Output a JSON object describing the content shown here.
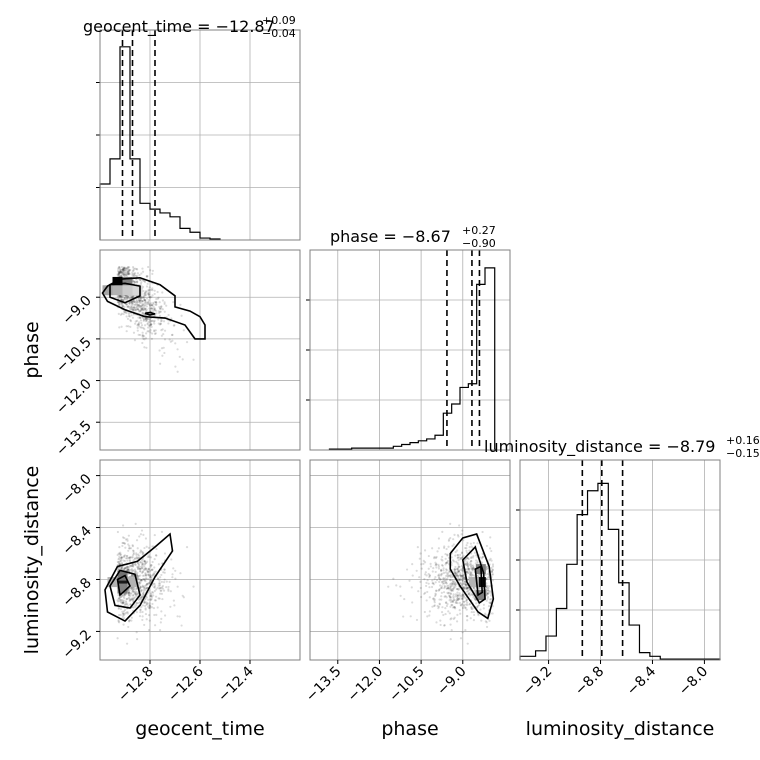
{
  "chart_data": {
    "type": "corner",
    "parameters": [
      "geocent_time",
      "phase",
      "luminosity_distance"
    ],
    "titles": [
      {
        "text": "geocent_time = −12.87",
        "upper": "+0.09",
        "lower": "−0.04"
      },
      {
        "text": "phase = −8.67",
        "upper": "+0.27",
        "lower": "−0.90"
      },
      {
        "text": "luminosity_distance = −8.79",
        "upper": "+0.16",
        "lower": "−0.15"
      }
    ],
    "axis_labels": {
      "x": [
        "geocent_time",
        "phase",
        "luminosity_distance"
      ],
      "y": [
        "phase",
        "luminosity_distance"
      ]
    },
    "ranges": {
      "geocent_time": [
        -13.0,
        -12.2
      ],
      "phase": [
        -14.5,
        -7.3
      ],
      "luminosity_distance": [
        -9.42,
        -7.88
      ]
    },
    "ticks": {
      "geocent_time": [
        {
          "v": -12.8,
          "label": "−12.8"
        },
        {
          "v": -12.6,
          "label": "−12.6"
        },
        {
          "v": -12.4,
          "label": "−12.4"
        }
      ],
      "phase": [
        {
          "v": -13.5,
          "label": "−13.5"
        },
        {
          "v": -12.0,
          "label": "−12.0"
        },
        {
          "v": -10.5,
          "label": "−10.5"
        },
        {
          "v": -9.0,
          "label": "−9.0"
        }
      ],
      "luminosity_distance": [
        {
          "v": -9.2,
          "label": "−9.2"
        },
        {
          "v": -8.8,
          "label": "−8.8"
        },
        {
          "v": -8.4,
          "label": "−8.4"
        },
        {
          "v": -8.0,
          "label": "−8.0"
        }
      ]
    },
    "quantiles": {
      "geocent_time": [
        -12.91,
        -12.87,
        -12.78
      ],
      "phase": [
        -9.57,
        -8.67,
        -8.4
      ],
      "luminosity_distance": [
        -8.94,
        -8.79,
        -8.63
      ]
    },
    "histograms": {
      "geocent_time": {
        "edges": [
          -13.0,
          -12.96,
          -12.92,
          -12.88,
          -12.84,
          -12.8,
          -12.76,
          -12.72,
          -12.68,
          -12.64,
          -12.6,
          -12.56,
          -12.52
        ],
        "counts": [
          0.29,
          0.42,
          1.0,
          0.42,
          0.19,
          0.16,
          0.14,
          0.12,
          0.06,
          0.04,
          0.01,
          0.005
        ]
      },
      "phase": {
        "edges": [
          -13.8,
          -13.0,
          -11.5,
          -11.2,
          -10.9,
          -10.6,
          -10.3,
          -10.0,
          -9.7,
          -9.4,
          -9.1,
          -8.8,
          -8.5,
          -8.2,
          -7.85
        ],
        "counts": [
          0.005,
          0.01,
          0.02,
          0.03,
          0.04,
          0.05,
          0.06,
          0.08,
          0.2,
          0.25,
          0.34,
          0.36,
          0.9,
          0.99
        ]
      },
      "luminosity_distance": {
        "edges": [
          -9.42,
          -9.3,
          -9.22,
          -9.14,
          -9.06,
          -8.98,
          -8.9,
          -8.82,
          -8.74,
          -8.66,
          -8.58,
          -8.5,
          -8.42,
          -8.34,
          -7.88
        ],
        "counts": [
          0.02,
          0.05,
          0.13,
          0.28,
          0.52,
          0.79,
          0.92,
          0.96,
          0.71,
          0.42,
          0.19,
          0.04,
          0.02,
          0.005
        ]
      }
    },
    "contours": {
      "phase_vs_geocent_time": [
        [
          [
            -12.97,
            -8.6
          ],
          [
            -12.92,
            -8.35
          ],
          [
            -12.84,
            -8.3
          ],
          [
            -12.76,
            -8.55
          ],
          [
            -12.7,
            -8.95
          ],
          [
            -12.7,
            -9.35
          ],
          [
            -12.64,
            -9.5
          ],
          [
            -12.6,
            -9.7
          ],
          [
            -12.58,
            -10.0
          ],
          [
            -12.58,
            -10.5
          ],
          [
            -12.62,
            -10.5
          ],
          [
            -12.66,
            -10.0
          ],
          [
            -12.74,
            -9.75
          ],
          [
            -12.82,
            -9.7
          ],
          [
            -12.9,
            -9.45
          ],
          [
            -12.97,
            -9.15
          ],
          [
            -12.99,
            -8.85
          ]
        ],
        [
          [
            -12.96,
            -8.55
          ],
          [
            -12.9,
            -8.5
          ],
          [
            -12.84,
            -8.6
          ],
          [
            -12.84,
            -8.95
          ],
          [
            -12.9,
            -9.2
          ],
          [
            -12.96,
            -9.0
          ]
        ],
        [
          [
            -12.82,
            -9.58
          ],
          [
            -12.8,
            -9.55
          ],
          [
            -12.78,
            -9.6
          ],
          [
            -12.8,
            -9.64
          ]
        ]
      ],
      "luminosity_distance_vs_geocent_time": [
        [
          [
            -12.98,
            -8.88
          ],
          [
            -12.93,
            -8.7
          ],
          [
            -12.85,
            -8.66
          ],
          [
            -12.78,
            -8.55
          ],
          [
            -12.72,
            -8.45
          ],
          [
            -12.71,
            -8.58
          ],
          [
            -12.78,
            -8.78
          ],
          [
            -12.84,
            -9.0
          ],
          [
            -12.9,
            -9.12
          ],
          [
            -12.97,
            -9.05
          ]
        ],
        [
          [
            -12.96,
            -8.85
          ],
          [
            -12.92,
            -8.73
          ],
          [
            -12.86,
            -8.76
          ],
          [
            -12.84,
            -8.92
          ],
          [
            -12.88,
            -9.02
          ],
          [
            -12.94,
            -9.0
          ]
        ],
        [
          [
            -12.93,
            -8.8
          ],
          [
            -12.9,
            -8.77
          ],
          [
            -12.88,
            -8.85
          ],
          [
            -12.92,
            -8.92
          ]
        ]
      ],
      "luminosity_distance_vs_phase": [
        [
          [
            -9.45,
            -8.6
          ],
          [
            -9.0,
            -8.48
          ],
          [
            -8.5,
            -8.45
          ],
          [
            -8.05,
            -8.7
          ],
          [
            -7.9,
            -8.95
          ],
          [
            -8.1,
            -9.1
          ],
          [
            -8.45,
            -9.05
          ],
          [
            -9.1,
            -8.85
          ],
          [
            -9.45,
            -8.72
          ]
        ],
        [
          [
            -9.0,
            -8.65
          ],
          [
            -8.55,
            -8.55
          ],
          [
            -8.25,
            -8.75
          ],
          [
            -8.2,
            -8.95
          ],
          [
            -8.4,
            -8.98
          ],
          [
            -8.85,
            -8.82
          ]
        ],
        [
          [
            -8.55,
            -8.72
          ],
          [
            -8.35,
            -8.7
          ],
          [
            -8.3,
            -8.9
          ],
          [
            -8.45,
            -8.92
          ]
        ]
      ]
    },
    "dense_cells": {
      "phase_vs_geocent_time": [
        [
          -12.93,
          -8.45,
          1.0
        ],
        [
          -12.89,
          -8.45,
          0.5
        ],
        [
          -12.97,
          -8.75,
          0.35
        ],
        [
          -12.93,
          -8.75,
          0.3
        ],
        [
          -12.89,
          -8.75,
          0.2
        ],
        [
          -12.85,
          -8.75,
          0.15
        ]
      ],
      "luminosity_distance_vs_geocent_time": [
        [
          -12.91,
          -8.82,
          0.9
        ],
        [
          -12.91,
          -8.77,
          0.55
        ],
        [
          -12.91,
          -8.87,
          0.5
        ],
        [
          -12.95,
          -8.82,
          0.3
        ],
        [
          -12.87,
          -8.82,
          0.3
        ]
      ],
      "luminosity_distance_vs_phase": [
        [
          -8.35,
          -8.82,
          0.95
        ],
        [
          -8.35,
          -8.72,
          0.5
        ],
        [
          -8.35,
          -8.92,
          0.5
        ],
        [
          -8.6,
          -8.82,
          0.3
        ]
      ]
    },
    "grid": true
  }
}
